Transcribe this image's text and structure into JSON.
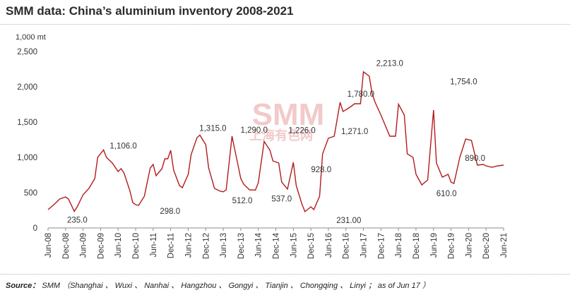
{
  "title": "SMM data: China’s aluminium inventory 2008-2021",
  "source": {
    "label": "Source：",
    "text": "SMM （Shanghai 、 Wuxi 、 Nanhai 、 Hangzhou 、 Gongyi 、 Tianjin 、 Chongqing 、 Linyi ； as of Jun 17 ）"
  },
  "watermark": {
    "text": "SMM",
    "subtext": "上海有色网",
    "color": "#e8a0a0"
  },
  "chart_data": {
    "type": "line",
    "title": "SMM data: China’s aluminium inventory 2008-2021",
    "unit": "1,000 mt",
    "ylim": [
      0,
      2500
    ],
    "yticks": [
      0,
      500,
      1000,
      1500,
      2000,
      2500
    ],
    "ytick_labels": [
      "0",
      "500",
      "1,000",
      "1,500",
      "2,000",
      "2,500"
    ],
    "x_tick_labels": [
      "Jun-08",
      "Dec-08",
      "Jun-09",
      "Dec-09",
      "Jun-10",
      "Dec-10",
      "Jun-11",
      "Dec-11",
      "Jun-12",
      "Dec-12",
      "Jun-13",
      "Dec-13",
      "Jun-14",
      "Dec-14",
      "Jun-15",
      "Dec-15",
      "Jun-16",
      "Dec-16",
      "Jun-17",
      "Dec-17",
      "Jun-18",
      "Dec-18",
      "Jun-19",
      "Dec-19",
      "Jun-20",
      "Dec-20",
      "Jun-21"
    ],
    "line_color": "#b31b1b",
    "grid": false,
    "series": [
      {
        "x": [
          "2008-06",
          "2008-08",
          "2008-10",
          "2008-12",
          "2009-01",
          "2009-03",
          "2009-04",
          "2009-06",
          "2009-08",
          "2009-10",
          "2009-11",
          "2010-01",
          "2010-02",
          "2010-04",
          "2010-06",
          "2010-07",
          "2010-08",
          "2010-10",
          "2010-11",
          "2010-12",
          "2011-01",
          "2011-03",
          "2011-05",
          "2011-06",
          "2011-07",
          "2011-09",
          "2011-10",
          "2011-11",
          "2011-12",
          "2012-01",
          "2012-03",
          "2012-04",
          "2012-06",
          "2012-07",
          "2012-09",
          "2012-10",
          "2012-12",
          "2013-01",
          "2013-03",
          "2013-05",
          "2013-06",
          "2013-07",
          "2013-09",
          "2013-10",
          "2013-12",
          "2014-01",
          "2014-03",
          "2014-05",
          "2014-06",
          "2014-08",
          "2014-10",
          "2014-11",
          "2015-01",
          "2015-02",
          "2015-04",
          "2015-06",
          "2015-07",
          "2015-09",
          "2015-10",
          "2015-12",
          "2016-01",
          "2016-03",
          "2016-04",
          "2016-06",
          "2016-08",
          "2016-10",
          "2016-11",
          "2017-01",
          "2017-03",
          "2017-05",
          "2017-06",
          "2017-08",
          "2017-09",
          "2017-10",
          "2017-12",
          "2018-01",
          "2018-03",
          "2018-05",
          "2018-06",
          "2018-08",
          "2018-09",
          "2018-11",
          "2018-12",
          "2019-02",
          "2019-04",
          "2019-06",
          "2019-07",
          "2019-09",
          "2019-11",
          "2019-12",
          "2020-01",
          "2020-03",
          "2020-05",
          "2020-07",
          "2020-09",
          "2020-11",
          "2020-12",
          "2021-02",
          "2021-04",
          "2021-06"
        ],
        "values": [
          260,
          330,
          410,
          440,
          410,
          235,
          300,
          470,
          560,
          700,
          1000,
          1106,
          1000,
          920,
          800,
          840,
          780,
          530,
          360,
          330,
          320,
          450,
          850,
          900,
          740,
          840,
          980,
          980,
          1100,
          820,
          600,
          570,
          760,
          1040,
          1280,
          1315,
          1180,
          850,
          560,
          520,
          512,
          540,
          1300,
          1100,
          700,
          620,
          540,
          537,
          640,
          1226,
          1100,
          950,
          920,
          650,
          550,
          928,
          600,
          330,
          231,
          300,
          260,
          450,
          1050,
          1271,
          1300,
          1780,
          1650,
          1700,
          1760,
          1760,
          2213,
          2150,
          1900,
          1780,
          1600,
          1500,
          1300,
          1300,
          1754,
          1600,
          1050,
          1000,
          760,
          610,
          680,
          1670,
          920,
          720,
          760,
          650,
          630,
          1000,
          1260,
          1240,
          890,
          900,
          880,
          860,
          880,
          890
        ]
      }
    ],
    "data_labels": [
      {
        "x": "2009-04",
        "y": 235.0,
        "text": "235.0"
      },
      {
        "x": "2010-01",
        "y": 1106.0,
        "text": "1,106.0"
      },
      {
        "x": "2011-05",
        "y": 298.0,
        "text": "298.0"
      },
      {
        "x": "2013-01",
        "y": 1315.0,
        "text": "1,315.0"
      },
      {
        "x": "2014-01",
        "y": 512.0,
        "text": "512.0"
      },
      {
        "x": "2014-06",
        "y": 1290.0,
        "text": "1,290.0"
      },
      {
        "x": "2015-02",
        "y": 537.0,
        "text": "537.0"
      },
      {
        "x": "2015-08",
        "y": 1226.0,
        "text": "1,226.0"
      },
      {
        "x": "2016-05",
        "y": 928.0,
        "text": "928.0"
      },
      {
        "x": "2017-01",
        "y": 231.0,
        "text": "231.00"
      },
      {
        "x": "2017-03",
        "y": 1271.0,
        "text": "1,271.0"
      },
      {
        "x": "2017-08",
        "y": 1780.0,
        "text": "1,780.0"
      },
      {
        "x": "2018-03",
        "y": 2213.0,
        "text": "2,213.0"
      },
      {
        "x": "2019-09",
        "y": 610.0,
        "text": "610.0"
      },
      {
        "x": "2021-02",
        "y": 1754.0,
        "text": "1,754.0"
      },
      {
        "x": "2021-03",
        "y": 890.0,
        "text": "890.0"
      }
    ]
  }
}
